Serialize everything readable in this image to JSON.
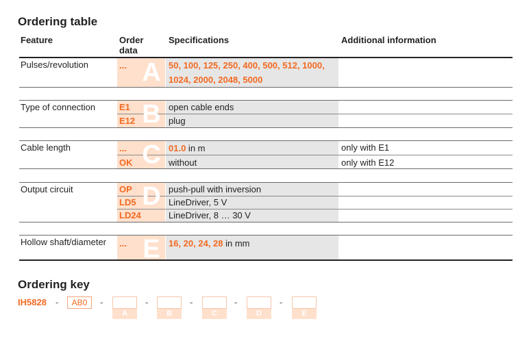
{
  "table_title": "Ordering table",
  "headers": {
    "feature": "Feature",
    "order_line1": "Order",
    "order_line2": "data",
    "specifications": "Specifications",
    "additional": "Additional information"
  },
  "rows": {
    "pulses": {
      "letter": "A",
      "feature": "Pulses/revolution",
      "code": "...",
      "spec": "50, 100, 125, 250, 400, 500, 512, 1000, 1024, 2000, 2048, 5000"
    },
    "connection": {
      "letter": "B",
      "feature": "Type of connection",
      "items": [
        {
          "code": "E1",
          "spec": "open cable ends",
          "info": ""
        },
        {
          "code": "E12",
          "spec": "plug",
          "info": ""
        }
      ]
    },
    "cable": {
      "letter": "C",
      "feature": "Cable length",
      "items": [
        {
          "code": "...",
          "spec_value": "01.0",
          "spec_unit": " in m",
          "info": "only with E1"
        },
        {
          "code": "OK",
          "spec": "without",
          "info": "only with E12"
        }
      ]
    },
    "output": {
      "letter": "D",
      "feature": "Output circuit",
      "items": [
        {
          "code": "OP",
          "spec": "push-pull with inversion"
        },
        {
          "code": "LD5",
          "spec": "LineDriver, 5 V"
        },
        {
          "code": "LD24",
          "spec": "LineDriver, 8 … 30 V"
        }
      ]
    },
    "shaft": {
      "letter": "E",
      "feature": "Hollow shaft/diameter",
      "code": "...",
      "spec_value": "16, 20, 24, 28",
      "spec_unit": " in mm"
    }
  },
  "key_title": "Ordering key",
  "key": {
    "model": "IH5828",
    "dash": "-",
    "fixed": "AB0",
    "slots": [
      "A",
      "B",
      "C",
      "D",
      "E"
    ]
  },
  "colors": {
    "accent": "#f26a21",
    "order_bg": "#ffe0cc",
    "spec_bg": "#e6e6e6"
  }
}
